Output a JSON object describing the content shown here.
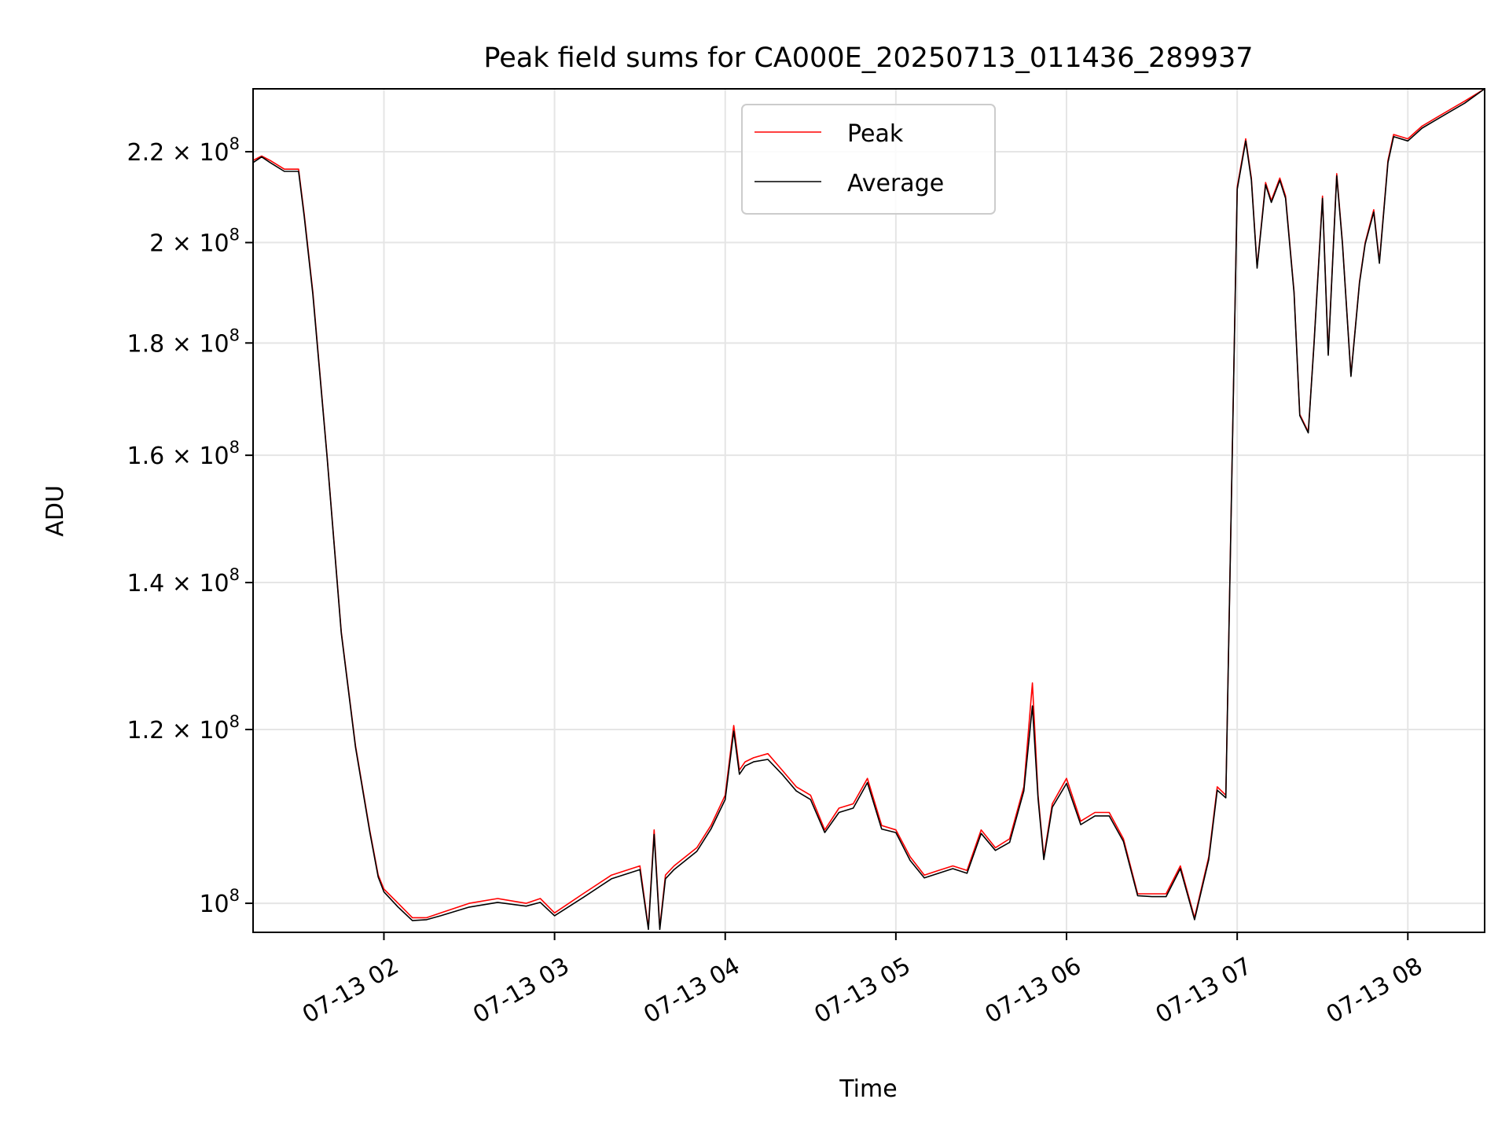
{
  "chart_data": {
    "type": "line",
    "title": "Peak field sums for CA000E_20250713_011436_289937",
    "xlabel": "Time",
    "ylabel": "ADU",
    "x_axis": {
      "kind": "time",
      "range": [
        "07-13 01:14",
        "07-13 08:27"
      ],
      "ticks": [
        "07-13 02",
        "07-13 03",
        "07-13 04",
        "07-13 05",
        "07-13 06",
        "07-13 07",
        "07-13 08"
      ]
    },
    "y_axis": {
      "scale": "log",
      "range": [
        97000000,
        235000000
      ],
      "ticks": [
        {
          "value": 100000000,
          "mantissa": "",
          "base": "10",
          "exp": "8"
        },
        {
          "value": 120000000,
          "mantissa": "1.2",
          "base": "10",
          "exp": "8"
        },
        {
          "value": 140000000,
          "mantissa": "1.4",
          "base": "10",
          "exp": "8"
        },
        {
          "value": 160000000,
          "mantissa": "1.6",
          "base": "10",
          "exp": "8"
        },
        {
          "value": 180000000,
          "mantissa": "1.8",
          "base": "10",
          "exp": "8"
        },
        {
          "value": 200000000,
          "mantissa": "2",
          "base": "10",
          "exp": "8"
        },
        {
          "value": 220000000,
          "mantissa": "2.2",
          "base": "10",
          "exp": "8"
        }
      ]
    },
    "grid": true,
    "legend": {
      "placement": "upper center"
    },
    "series": [
      {
        "name": "Peak",
        "color": "#ff0000",
        "x": [
          "07-13 01:14",
          "07-13 01:17",
          "07-13 01:20",
          "07-13 01:25",
          "07-13 01:30",
          "07-13 01:32",
          "07-13 01:35",
          "07-13 01:40",
          "07-13 01:45",
          "07-13 01:50",
          "07-13 01:55",
          "07-13 01:58",
          "07-13 02:00",
          "07-13 02:05",
          "07-13 02:10",
          "07-13 02:15",
          "07-13 02:20",
          "07-13 02:30",
          "07-13 02:40",
          "07-13 02:50",
          "07-13 02:55",
          "07-13 03:00",
          "07-13 03:10",
          "07-13 03:20",
          "07-13 03:30",
          "07-13 03:33",
          "07-13 03:35",
          "07-13 03:37",
          "07-13 03:39",
          "07-13 03:42",
          "07-13 03:50",
          "07-13 03:55",
          "07-13 04:00",
          "07-13 04:03",
          "07-13 04:05",
          "07-13 04:07",
          "07-13 04:10",
          "07-13 04:15",
          "07-13 04:20",
          "07-13 04:25",
          "07-13 04:30",
          "07-13 04:35",
          "07-13 04:40",
          "07-13 04:45",
          "07-13 04:50",
          "07-13 04:55",
          "07-13 05:00",
          "07-13 05:05",
          "07-13 05:10",
          "07-13 05:15",
          "07-13 05:20",
          "07-13 05:25",
          "07-13 05:30",
          "07-13 05:35",
          "07-13 05:40",
          "07-13 05:45",
          "07-13 05:48",
          "07-13 05:50",
          "07-13 05:52",
          "07-13 05:55",
          "07-13 06:00",
          "07-13 06:05",
          "07-13 06:10",
          "07-13 06:15",
          "07-13 06:20",
          "07-13 06:25",
          "07-13 06:30",
          "07-13 06:35",
          "07-13 06:40",
          "07-13 06:45",
          "07-13 06:50",
          "07-13 06:53",
          "07-13 06:56",
          "07-13 07:00",
          "07-13 07:03",
          "07-13 07:05",
          "07-13 07:07",
          "07-13 07:10",
          "07-13 07:12",
          "07-13 07:15",
          "07-13 07:17",
          "07-13 07:20",
          "07-13 07:22",
          "07-13 07:25",
          "07-13 07:27",
          "07-13 07:30",
          "07-13 07:32",
          "07-13 07:35",
          "07-13 07:37",
          "07-13 07:40",
          "07-13 07:43",
          "07-13 07:45",
          "07-13 07:48",
          "07-13 07:50",
          "07-13 07:53",
          "07-13 07:55",
          "07-13 08:00",
          "07-13 08:05",
          "07-13 08:10",
          "07-13 08:15",
          "07-13 08:20",
          "07-13 08:27"
        ],
        "y": [
          218000000,
          219000000,
          218000000,
          216000000,
          216000000,
          206000000,
          190000000,
          160000000,
          133000000,
          118000000,
          108000000,
          103000000,
          101500000,
          100000000,
          98500000,
          98500000,
          99000000,
          100000000,
          100500000,
          100000000,
          100500000,
          99000000,
          101000000,
          103000000,
          104000000,
          97500000,
          108000000,
          97500000,
          103000000,
          104000000,
          106000000,
          108500000,
          112000000,
          120500000,
          115000000,
          116000000,
          116500000,
          117000000,
          115000000,
          113000000,
          112000000,
          108000000,
          110500000,
          111000000,
          114000000,
          108500000,
          108000000,
          105000000,
          103000000,
          103500000,
          104000000,
          103500000,
          108000000,
          106000000,
          107000000,
          113000000,
          126000000,
          112000000,
          105000000,
          111000000,
          114000000,
          109000000,
          110000000,
          110000000,
          107000000,
          101000000,
          101000000,
          101000000,
          104000000,
          98500000,
          105000000,
          113000000,
          112000000,
          212000000,
          223000000,
          214000000,
          195000000,
          213000000,
          209000000,
          214000000,
          210000000,
          190000000,
          167000000,
          164000000,
          180000000,
          210000000,
          178000000,
          215000000,
          200000000,
          174000000,
          192000000,
          200000000,
          207000000,
          196000000,
          218000000,
          224000000,
          223000000,
          226000000,
          228000000,
          230000000,
          232000000,
          235000000
        ]
      },
      {
        "name": "Average",
        "color": "#000000",
        "x": [
          "07-13 01:14",
          "07-13 01:17",
          "07-13 01:20",
          "07-13 01:25",
          "07-13 01:30",
          "07-13 01:32",
          "07-13 01:35",
          "07-13 01:40",
          "07-13 01:45",
          "07-13 01:50",
          "07-13 01:55",
          "07-13 01:58",
          "07-13 02:00",
          "07-13 02:05",
          "07-13 02:10",
          "07-13 02:15",
          "07-13 02:20",
          "07-13 02:30",
          "07-13 02:40",
          "07-13 02:50",
          "07-13 02:55",
          "07-13 03:00",
          "07-13 03:10",
          "07-13 03:20",
          "07-13 03:30",
          "07-13 03:33",
          "07-13 03:35",
          "07-13 03:37",
          "07-13 03:39",
          "07-13 03:42",
          "07-13 03:50",
          "07-13 03:55",
          "07-13 04:00",
          "07-13 04:03",
          "07-13 04:05",
          "07-13 04:07",
          "07-13 04:10",
          "07-13 04:15",
          "07-13 04:20",
          "07-13 04:25",
          "07-13 04:30",
          "07-13 04:35",
          "07-13 04:40",
          "07-13 04:45",
          "07-13 04:50",
          "07-13 04:55",
          "07-13 05:00",
          "07-13 05:05",
          "07-13 05:10",
          "07-13 05:15",
          "07-13 05:20",
          "07-13 05:25",
          "07-13 05:30",
          "07-13 05:35",
          "07-13 05:40",
          "07-13 05:45",
          "07-13 05:48",
          "07-13 05:50",
          "07-13 05:52",
          "07-13 05:55",
          "07-13 06:00",
          "07-13 06:05",
          "07-13 06:10",
          "07-13 06:15",
          "07-13 06:20",
          "07-13 06:25",
          "07-13 06:30",
          "07-13 06:35",
          "07-13 06:40",
          "07-13 06:45",
          "07-13 06:50",
          "07-13 06:53",
          "07-13 06:56",
          "07-13 07:00",
          "07-13 07:03",
          "07-13 07:05",
          "07-13 07:07",
          "07-13 07:10",
          "07-13 07:12",
          "07-13 07:15",
          "07-13 07:17",
          "07-13 07:20",
          "07-13 07:22",
          "07-13 07:25",
          "07-13 07:27",
          "07-13 07:30",
          "07-13 07:32",
          "07-13 07:35",
          "07-13 07:37",
          "07-13 07:40",
          "07-13 07:43",
          "07-13 07:45",
          "07-13 07:48",
          "07-13 07:50",
          "07-13 07:53",
          "07-13 07:55",
          "07-13 08:00",
          "07-13 08:05",
          "07-13 08:10",
          "07-13 08:15",
          "07-13 08:20",
          "07-13 08:27"
        ],
        "y": [
          217500000,
          218800000,
          217500000,
          215500000,
          215500000,
          205500000,
          189500000,
          159800000,
          132800000,
          117800000,
          107800000,
          102800000,
          101200000,
          99600000,
          98200000,
          98300000,
          98700000,
          99600000,
          100100000,
          99700000,
          100100000,
          98700000,
          100600000,
          102600000,
          103600000,
          97300000,
          107500000,
          97300000,
          102600000,
          103600000,
          105600000,
          108100000,
          111500000,
          119800000,
          114500000,
          115500000,
          116000000,
          116300000,
          114500000,
          112500000,
          111500000,
          107700000,
          110000000,
          110500000,
          113500000,
          108100000,
          107700000,
          104600000,
          102700000,
          103200000,
          103700000,
          103200000,
          107600000,
          105700000,
          106600000,
          112500000,
          123000000,
          111600000,
          104700000,
          110600000,
          113400000,
          108600000,
          109600000,
          109600000,
          106700000,
          100800000,
          100700000,
          100700000,
          103700000,
          98300000,
          104700000,
          112600000,
          111700000,
          211500000,
          222500000,
          213500000,
          194700000,
          212500000,
          208600000,
          213500000,
          209500000,
          189700000,
          166800000,
          163800000,
          179700000,
          209500000,
          177700000,
          214500000,
          199700000,
          173800000,
          191700000,
          199700000,
          206500000,
          195700000,
          217500000,
          223500000,
          222500000,
          225500000,
          227500000,
          229500000,
          231500000,
          235000000
        ]
      }
    ]
  }
}
